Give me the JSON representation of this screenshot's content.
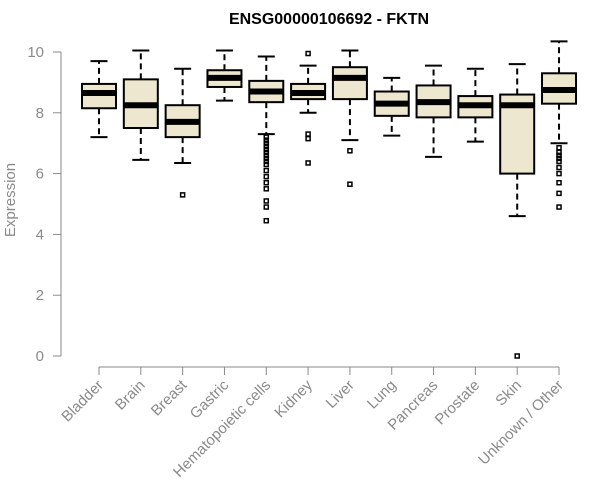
{
  "chart_data": {
    "type": "boxplot",
    "title": "ENSG00000106692 - FKTN",
    "xlabel": "",
    "ylabel": "Expression",
    "ylim": [
      0,
      10
    ],
    "yticks": [
      0,
      2,
      4,
      6,
      8,
      10
    ],
    "box_color": "#ede7cf",
    "categories": [
      "Bladder",
      "Brain",
      "Breast",
      "Gastric",
      "Hematopoietic cells",
      "Kidney",
      "Liver",
      "Lung",
      "Pancreas",
      "Prostate",
      "Skin",
      "Unknown / Other"
    ],
    "boxes": [
      {
        "whislo": 7.2,
        "q1": 8.15,
        "med": 8.65,
        "q3": 8.95,
        "whishi": 9.7,
        "fliers": []
      },
      {
        "whislo": 6.45,
        "q1": 7.5,
        "med": 8.25,
        "q3": 9.1,
        "whishi": 10.05,
        "fliers": []
      },
      {
        "whislo": 6.35,
        "q1": 7.2,
        "med": 7.7,
        "q3": 8.25,
        "whishi": 9.45,
        "fliers": [
          5.3
        ]
      },
      {
        "whislo": 8.4,
        "q1": 8.85,
        "med": 9.15,
        "q3": 9.4,
        "whishi": 10.05,
        "fliers": []
      },
      {
        "whislo": 7.3,
        "q1": 8.35,
        "med": 8.7,
        "q3": 9.05,
        "whishi": 9.85,
        "fliers": [
          7.2,
          7.1,
          7.0,
          6.9,
          6.8,
          6.7,
          6.6,
          6.5,
          6.4,
          6.3,
          6.1,
          5.9,
          5.7,
          5.5,
          5.1,
          4.9,
          4.45
        ]
      },
      {
        "whislo": 8.0,
        "q1": 8.45,
        "med": 8.65,
        "q3": 8.95,
        "whishi": 9.55,
        "fliers": [
          9.95,
          7.3,
          7.15,
          6.35
        ]
      },
      {
        "whislo": 7.1,
        "q1": 8.45,
        "med": 9.15,
        "q3": 9.5,
        "whishi": 10.05,
        "fliers": [
          6.75,
          5.65
        ]
      },
      {
        "whislo": 7.25,
        "q1": 7.9,
        "med": 8.3,
        "q3": 8.7,
        "whishi": 9.15,
        "fliers": []
      },
      {
        "whislo": 6.55,
        "q1": 7.85,
        "med": 8.35,
        "q3": 8.9,
        "whishi": 9.55,
        "fliers": []
      },
      {
        "whislo": 7.05,
        "q1": 7.85,
        "med": 8.25,
        "q3": 8.55,
        "whishi": 9.45,
        "fliers": []
      },
      {
        "whislo": 4.6,
        "q1": 6.0,
        "med": 8.25,
        "q3": 8.6,
        "whishi": 9.6,
        "fliers": [
          0.0
        ]
      },
      {
        "whislo": 7.0,
        "q1": 8.3,
        "med": 8.75,
        "q3": 9.3,
        "whishi": 10.35,
        "fliers": [
          6.85,
          6.7,
          6.6,
          6.5,
          6.4,
          6.2,
          6.0,
          5.7,
          5.35,
          4.9
        ]
      }
    ]
  }
}
